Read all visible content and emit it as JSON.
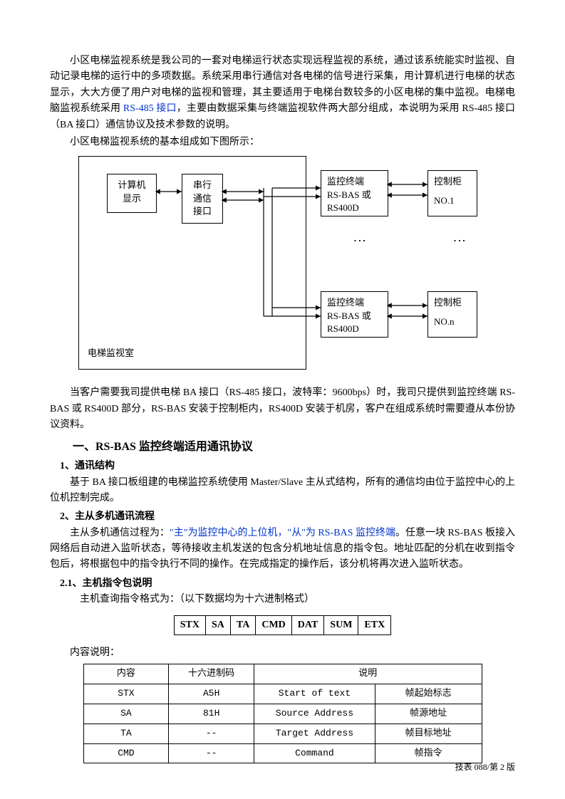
{
  "colors": {
    "text": "#000000",
    "link": "#0033cc",
    "bg": "#ffffff",
    "border": "#000000"
  },
  "intro": {
    "p1a": "小区电梯监视系统是我公司的一套对电梯运行状态实现远程监视的系统，通过该系统能实时监视、自动记录电梯的运行中的多项数据。系统采用串行通信对各电梯的信号进行采集，用计算机进行电梯的状态显示，大大方便了用户对电梯的监视和管理，其主要适用于电梯台数较多的小区电梯的集中监视。电梯电脑监视系统采用 ",
    "p1b": "RS-485 接口",
    "p1c": "，主要由数据采集与终端监视软件两大部分组成，本说明为采用 RS-485 接口（BA 接口）通信协议及技术参数的说明。",
    "p2": "小区电梯监视系统的基本组成如下图所示："
  },
  "diagram": {
    "outer_label": "电梯监视室",
    "calc": "计算机\n显示",
    "serial": "串行\n通信\n接口",
    "term1_l1": "监控终端",
    "term1_l2": "RS-BAS 或",
    "term1_l3": "RS400D",
    "ctrl1_l1": "控制柜",
    "ctrl1_l2": "NO.1",
    "term2_l1": "监控终端",
    "term2_l2": "RS-BAS 或",
    "term2_l3": "RS400D",
    "ctrl2_l1": "控制柜",
    "ctrl2_l2": "NO.n",
    "stroke": "#000000",
    "stroke_width": 1.2
  },
  "body": {
    "p3": "当客户需要我司提供电梯 BA 接口（RS-485 接口，波特率：9600bps）时，我司只提供到监控终端 RS-BAS 或 RS400D 部分，RS-BAS 安装于控制柜内，RS400D 安装于机房，客户在组成系统时需要遵从本份协议资料。",
    "h1": "一、RS-BAS 监控终端适用通讯协议",
    "s1": "1、通讯结构",
    "p4": "基于 BA 接口板组建的电梯监控系统使用 Master/Slave 主从式结构，所有的通信均由位于监控中心的上位机控制完成。",
    "s2": "2、主从多机通讯流程",
    "p5a": "主从多机通信过程为：",
    "p5b": "\"主\"为监控中心的上位机，\"从\"为 RS-BAS 监控终端",
    "p5c": "。任意一块 RS-BAS 板接入网络后自动进入监听状态，等待接收主机发送的包含分机地址信息的指令包。地址匹配的分机在收到指令包后，将根据包中的指令执行不同的操作。在完成指定的操作后，该分机将再次进入监听状态。",
    "s3": "2.1、主机指令包说明",
    "p6": "主机查询指令格式为：（以下数据均为十六进制格式）"
  },
  "cmd_fields": [
    "STX",
    "SA",
    "TA",
    "CMD",
    "DAT",
    "SUM",
    "ETX"
  ],
  "desc_label": "内容说明：",
  "desc_table": {
    "headers": [
      "内容",
      "十六进制码",
      "说明",
      ""
    ],
    "rows": [
      [
        "STX",
        "A5H",
        "Start of text",
        "帧起始标志"
      ],
      [
        "SA",
        "81H",
        "Source Address",
        "帧源地址"
      ],
      [
        "TA",
        "--",
        "Target Address",
        "帧目标地址"
      ],
      [
        "CMD",
        "--",
        "Command",
        "帧指令"
      ]
    ],
    "col_widths": [
      "120px",
      "120px",
      "170px",
      "150px"
    ]
  },
  "footer": "技表 088/第 2 版"
}
